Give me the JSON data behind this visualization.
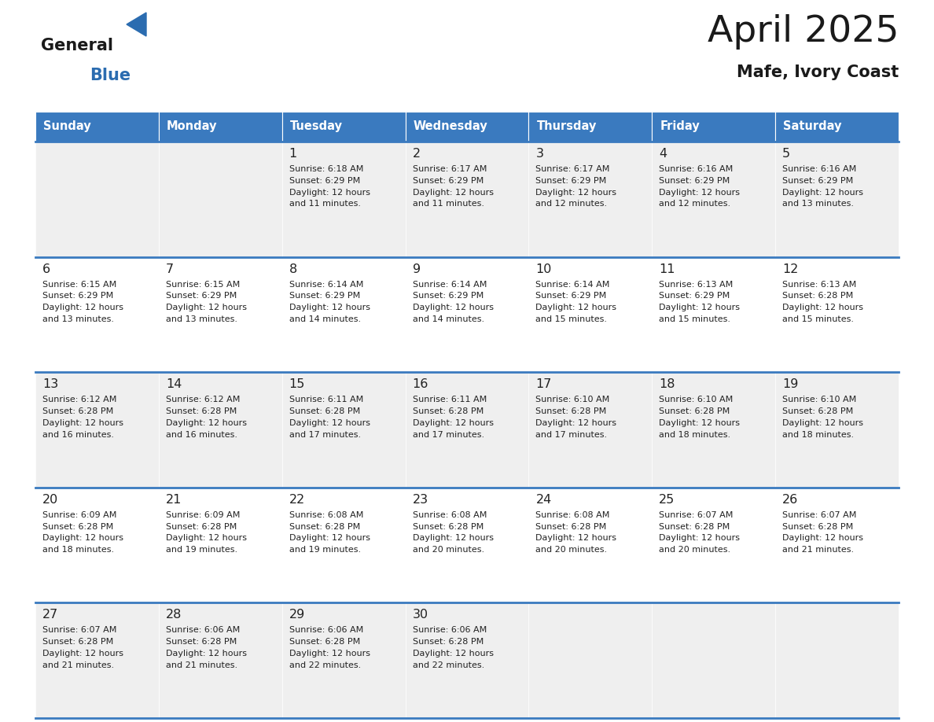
{
  "title": "April 2025",
  "subtitle": "Mafe, Ivory Coast",
  "header_color": "#3a7abf",
  "header_text_color": "#ffffff",
  "cell_bg_odd": "#efefef",
  "cell_bg_even": "#ffffff",
  "day_names": [
    "Sunday",
    "Monday",
    "Tuesday",
    "Wednesday",
    "Thursday",
    "Friday",
    "Saturday"
  ],
  "title_color": "#1a1a1a",
  "subtitle_color": "#1a1a1a",
  "text_color": "#222222",
  "line_color": "#3a7abf",
  "logo_general_color": "#1a1a1a",
  "logo_blue_color": "#2b6cb0",
  "weeks": [
    [
      {
        "day": null,
        "info": null
      },
      {
        "day": null,
        "info": null
      },
      {
        "day": 1,
        "info": "Sunrise: 6:18 AM\nSunset: 6:29 PM\nDaylight: 12 hours\nand 11 minutes."
      },
      {
        "day": 2,
        "info": "Sunrise: 6:17 AM\nSunset: 6:29 PM\nDaylight: 12 hours\nand 11 minutes."
      },
      {
        "day": 3,
        "info": "Sunrise: 6:17 AM\nSunset: 6:29 PM\nDaylight: 12 hours\nand 12 minutes."
      },
      {
        "day": 4,
        "info": "Sunrise: 6:16 AM\nSunset: 6:29 PM\nDaylight: 12 hours\nand 12 minutes."
      },
      {
        "day": 5,
        "info": "Sunrise: 6:16 AM\nSunset: 6:29 PM\nDaylight: 12 hours\nand 13 minutes."
      }
    ],
    [
      {
        "day": 6,
        "info": "Sunrise: 6:15 AM\nSunset: 6:29 PM\nDaylight: 12 hours\nand 13 minutes."
      },
      {
        "day": 7,
        "info": "Sunrise: 6:15 AM\nSunset: 6:29 PM\nDaylight: 12 hours\nand 13 minutes."
      },
      {
        "day": 8,
        "info": "Sunrise: 6:14 AM\nSunset: 6:29 PM\nDaylight: 12 hours\nand 14 minutes."
      },
      {
        "day": 9,
        "info": "Sunrise: 6:14 AM\nSunset: 6:29 PM\nDaylight: 12 hours\nand 14 minutes."
      },
      {
        "day": 10,
        "info": "Sunrise: 6:14 AM\nSunset: 6:29 PM\nDaylight: 12 hours\nand 15 minutes."
      },
      {
        "day": 11,
        "info": "Sunrise: 6:13 AM\nSunset: 6:29 PM\nDaylight: 12 hours\nand 15 minutes."
      },
      {
        "day": 12,
        "info": "Sunrise: 6:13 AM\nSunset: 6:28 PM\nDaylight: 12 hours\nand 15 minutes."
      }
    ],
    [
      {
        "day": 13,
        "info": "Sunrise: 6:12 AM\nSunset: 6:28 PM\nDaylight: 12 hours\nand 16 minutes."
      },
      {
        "day": 14,
        "info": "Sunrise: 6:12 AM\nSunset: 6:28 PM\nDaylight: 12 hours\nand 16 minutes."
      },
      {
        "day": 15,
        "info": "Sunrise: 6:11 AM\nSunset: 6:28 PM\nDaylight: 12 hours\nand 17 minutes."
      },
      {
        "day": 16,
        "info": "Sunrise: 6:11 AM\nSunset: 6:28 PM\nDaylight: 12 hours\nand 17 minutes."
      },
      {
        "day": 17,
        "info": "Sunrise: 6:10 AM\nSunset: 6:28 PM\nDaylight: 12 hours\nand 17 minutes."
      },
      {
        "day": 18,
        "info": "Sunrise: 6:10 AM\nSunset: 6:28 PM\nDaylight: 12 hours\nand 18 minutes."
      },
      {
        "day": 19,
        "info": "Sunrise: 6:10 AM\nSunset: 6:28 PM\nDaylight: 12 hours\nand 18 minutes."
      }
    ],
    [
      {
        "day": 20,
        "info": "Sunrise: 6:09 AM\nSunset: 6:28 PM\nDaylight: 12 hours\nand 18 minutes."
      },
      {
        "day": 21,
        "info": "Sunrise: 6:09 AM\nSunset: 6:28 PM\nDaylight: 12 hours\nand 19 minutes."
      },
      {
        "day": 22,
        "info": "Sunrise: 6:08 AM\nSunset: 6:28 PM\nDaylight: 12 hours\nand 19 minutes."
      },
      {
        "day": 23,
        "info": "Sunrise: 6:08 AM\nSunset: 6:28 PM\nDaylight: 12 hours\nand 20 minutes."
      },
      {
        "day": 24,
        "info": "Sunrise: 6:08 AM\nSunset: 6:28 PM\nDaylight: 12 hours\nand 20 minutes."
      },
      {
        "day": 25,
        "info": "Sunrise: 6:07 AM\nSunset: 6:28 PM\nDaylight: 12 hours\nand 20 minutes."
      },
      {
        "day": 26,
        "info": "Sunrise: 6:07 AM\nSunset: 6:28 PM\nDaylight: 12 hours\nand 21 minutes."
      }
    ],
    [
      {
        "day": 27,
        "info": "Sunrise: 6:07 AM\nSunset: 6:28 PM\nDaylight: 12 hours\nand 21 minutes."
      },
      {
        "day": 28,
        "info": "Sunrise: 6:06 AM\nSunset: 6:28 PM\nDaylight: 12 hours\nand 21 minutes."
      },
      {
        "day": 29,
        "info": "Sunrise: 6:06 AM\nSunset: 6:28 PM\nDaylight: 12 hours\nand 22 minutes."
      },
      {
        "day": 30,
        "info": "Sunrise: 6:06 AM\nSunset: 6:28 PM\nDaylight: 12 hours\nand 22 minutes."
      },
      {
        "day": null,
        "info": null
      },
      {
        "day": null,
        "info": null
      },
      {
        "day": null,
        "info": null
      }
    ]
  ]
}
